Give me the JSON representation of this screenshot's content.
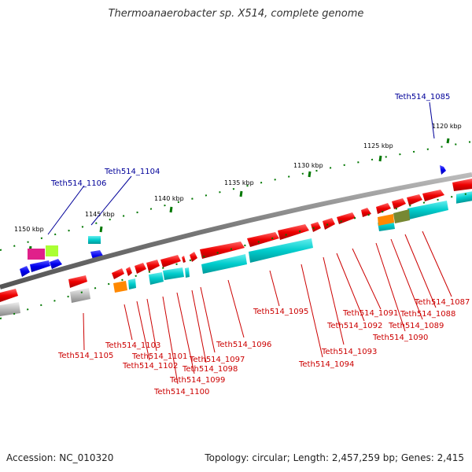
{
  "title": "Thermoanaerobacter sp. X514, complete genome",
  "footer": {
    "accession": "Accession: NC_010320",
    "summary": "Topology: circular; Length: 2,457,259 bp; Genes: 2,415"
  },
  "kbp_labels": [
    "1120 kbp",
    "1125 kbp",
    "1130 kbp",
    "1135 kbp",
    "1140 kbp",
    "1145 kbp",
    "1150 kbp"
  ],
  "gene_labels_top": [
    "Teth514_1085",
    "Teth514_1104",
    "Teth514_1106"
  ],
  "gene_labels_bottom": [
    "Teth514_1087",
    "Teth514_1088",
    "Teth514_1089",
    "Teth514_1090",
    "Teth514_1091",
    "Teth514_1092",
    "Teth514_1093",
    "Teth514_1094",
    "Teth514_1095",
    "Teth514_1096",
    "Teth514_1097",
    "Teth514_1098",
    "Teth514_1099",
    "Teth514_1100",
    "Teth514_1101",
    "Teth514_1102",
    "Teth514_1103",
    "Teth514_1105"
  ],
  "colors": {
    "forward_gene": "#ff0000",
    "cds": "#00cccc",
    "reverse_gene": "#0000ff",
    "backbone": "#888888",
    "ticks": "#007700",
    "label_red": "#cc0000",
    "label_blue": "#000099"
  }
}
